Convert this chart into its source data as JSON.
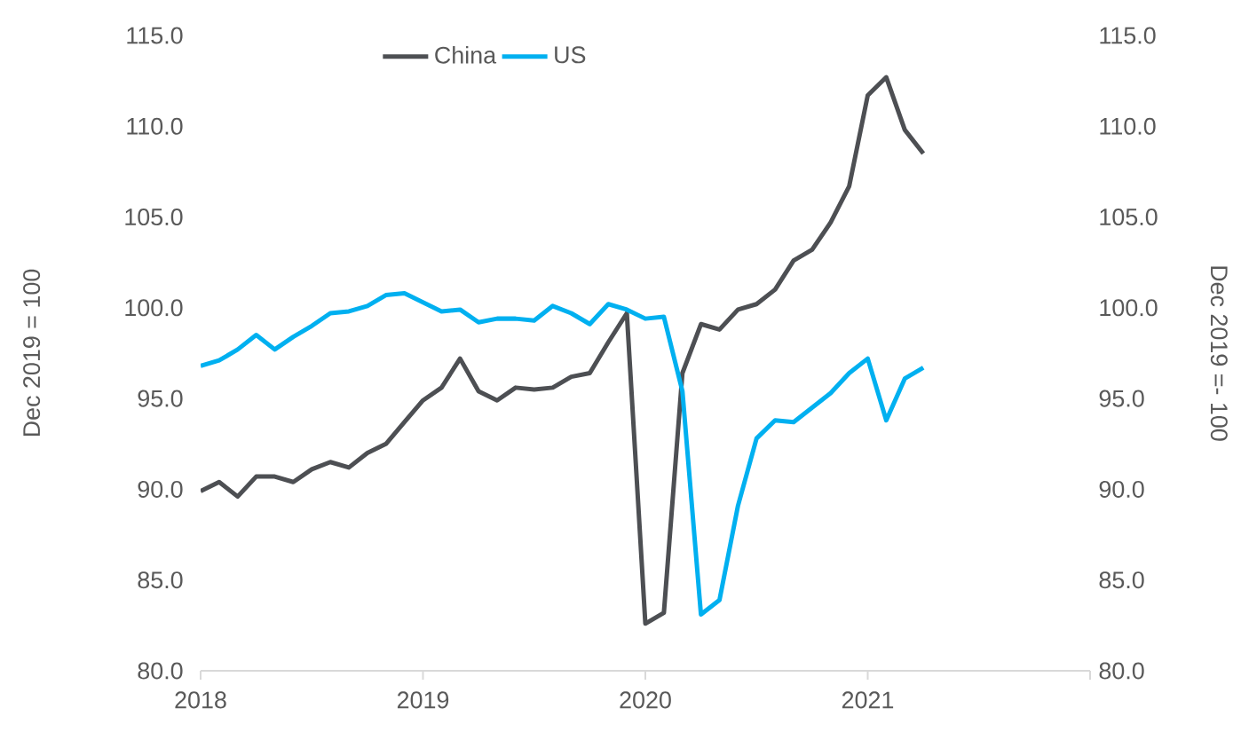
{
  "chart_data": {
    "type": "line",
    "ylabel": "Dec 2019 = 100",
    "y2label": "Dec 2019 =- 100",
    "x": [
      "2018-01",
      "2018-02",
      "2018-03",
      "2018-04",
      "2018-05",
      "2018-06",
      "2018-07",
      "2018-08",
      "2018-09",
      "2018-10",
      "2018-11",
      "2018-12",
      "2019-01",
      "2019-02",
      "2019-03",
      "2019-04",
      "2019-05",
      "2019-06",
      "2019-07",
      "2019-08",
      "2019-09",
      "2019-10",
      "2019-11",
      "2019-12",
      "2020-01",
      "2020-02",
      "2020-03",
      "2020-04",
      "2020-05",
      "2020-06",
      "2020-07",
      "2020-08",
      "2020-09",
      "2020-10",
      "2020-11",
      "2020-12",
      "2021-01",
      "2021-02",
      "2021-03",
      "2021-04"
    ],
    "series": [
      {
        "name": "China",
        "color": "#4d4f53",
        "values": [
          89.9,
          90.4,
          89.6,
          90.7,
          90.7,
          90.4,
          91.1,
          91.5,
          91.2,
          92.0,
          92.5,
          93.7,
          94.9,
          95.6,
          97.2,
          95.4,
          94.9,
          95.6,
          95.5,
          95.6,
          96.2,
          96.4,
          98.1,
          99.7,
          82.6,
          83.2,
          96.4,
          99.1,
          98.8,
          99.9,
          100.2,
          101.0,
          102.6,
          103.2,
          104.7,
          106.7,
          111.7,
          112.7,
          109.8,
          108.5
        ]
      },
      {
        "name": "US",
        "color": "#00b0f0",
        "values": [
          96.8,
          97.1,
          97.7,
          98.5,
          97.7,
          98.4,
          99.0,
          99.7,
          99.8,
          100.1,
          100.7,
          100.8,
          100.3,
          99.8,
          99.9,
          99.2,
          99.4,
          99.4,
          99.3,
          100.1,
          99.7,
          99.1,
          100.2,
          99.9,
          99.4,
          99.5,
          95.4,
          83.1,
          83.9,
          89.1,
          92.8,
          93.8,
          93.7,
          94.5,
          95.3,
          96.4,
          97.2,
          93.8,
          96.1,
          96.7
        ]
      }
    ],
    "xlim": [
      "2018",
      "2022"
    ],
    "xticks": [
      "2018",
      "2019",
      "2020",
      "2021",
      {
        "value": "2022",
        "label": null
      }
    ],
    "ylim": [
      80,
      115
    ],
    "yticks": [
      {
        "value": 80,
        "label": "80.0"
      },
      {
        "value": 85,
        "label": "85.0"
      },
      {
        "value": 90,
        "label": "90.0"
      },
      {
        "value": 95,
        "label": "95.0"
      },
      {
        "value": 100,
        "label": "100.0"
      },
      {
        "value": 105,
        "label": "105.0"
      },
      {
        "value": 110,
        "label": "110.0"
      },
      {
        "value": 115,
        "label": "115.0"
      }
    ],
    "y2lim": [
      80,
      115
    ],
    "y2ticks": [
      {
        "value": 80,
        "label": "80.0"
      },
      {
        "value": 85,
        "label": "85.0"
      },
      {
        "value": 90,
        "label": "90.0"
      },
      {
        "value": 95,
        "label": "95.0"
      },
      {
        "value": 100,
        "label": "100.0"
      },
      {
        "value": 105,
        "label": "105.0"
      },
      {
        "value": 110,
        "label": "110.0"
      },
      {
        "value": 115,
        "label": "115.0"
      }
    ],
    "legend": "top"
  }
}
